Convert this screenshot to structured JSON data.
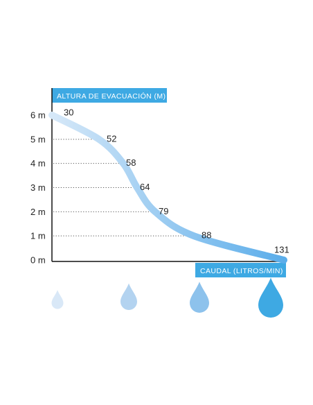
{
  "chart_data": {
    "type": "line",
    "title": "",
    "ylabel": "ALTURA DE EVACUACIÓN (M)",
    "xlabel": "CAUDAL (LITROS/MIN)",
    "y_ticks": [
      "0 m",
      "1 m",
      "2 m",
      "3 m",
      "4 m",
      "5 m",
      "6 m"
    ],
    "ylim": [
      0,
      6
    ],
    "points": [
      {
        "y": 6,
        "flow": "30"
      },
      {
        "y": 5,
        "flow": "52"
      },
      {
        "y": 4,
        "flow": "58"
      },
      {
        "y": 3,
        "flow": "64"
      },
      {
        "y": 2,
        "flow": "79"
      },
      {
        "y": 1,
        "flow": "88"
      },
      {
        "y": 0,
        "flow": "131"
      }
    ],
    "grid": "dotted guides at 1–5 m",
    "legend": "none",
    "colors": {
      "axis": "#111111",
      "title_bg": "#3ea9e3",
      "curve_start": "#d6e8f8",
      "curve_end": "#5badea",
      "drops": [
        "#d9e8f7",
        "#b3d3f0",
        "#8dc2ec",
        "#3ea9e3"
      ]
    },
    "drop_icons": [
      "drop-small",
      "drop-medium",
      "drop-large",
      "drop-xlarge"
    ]
  }
}
